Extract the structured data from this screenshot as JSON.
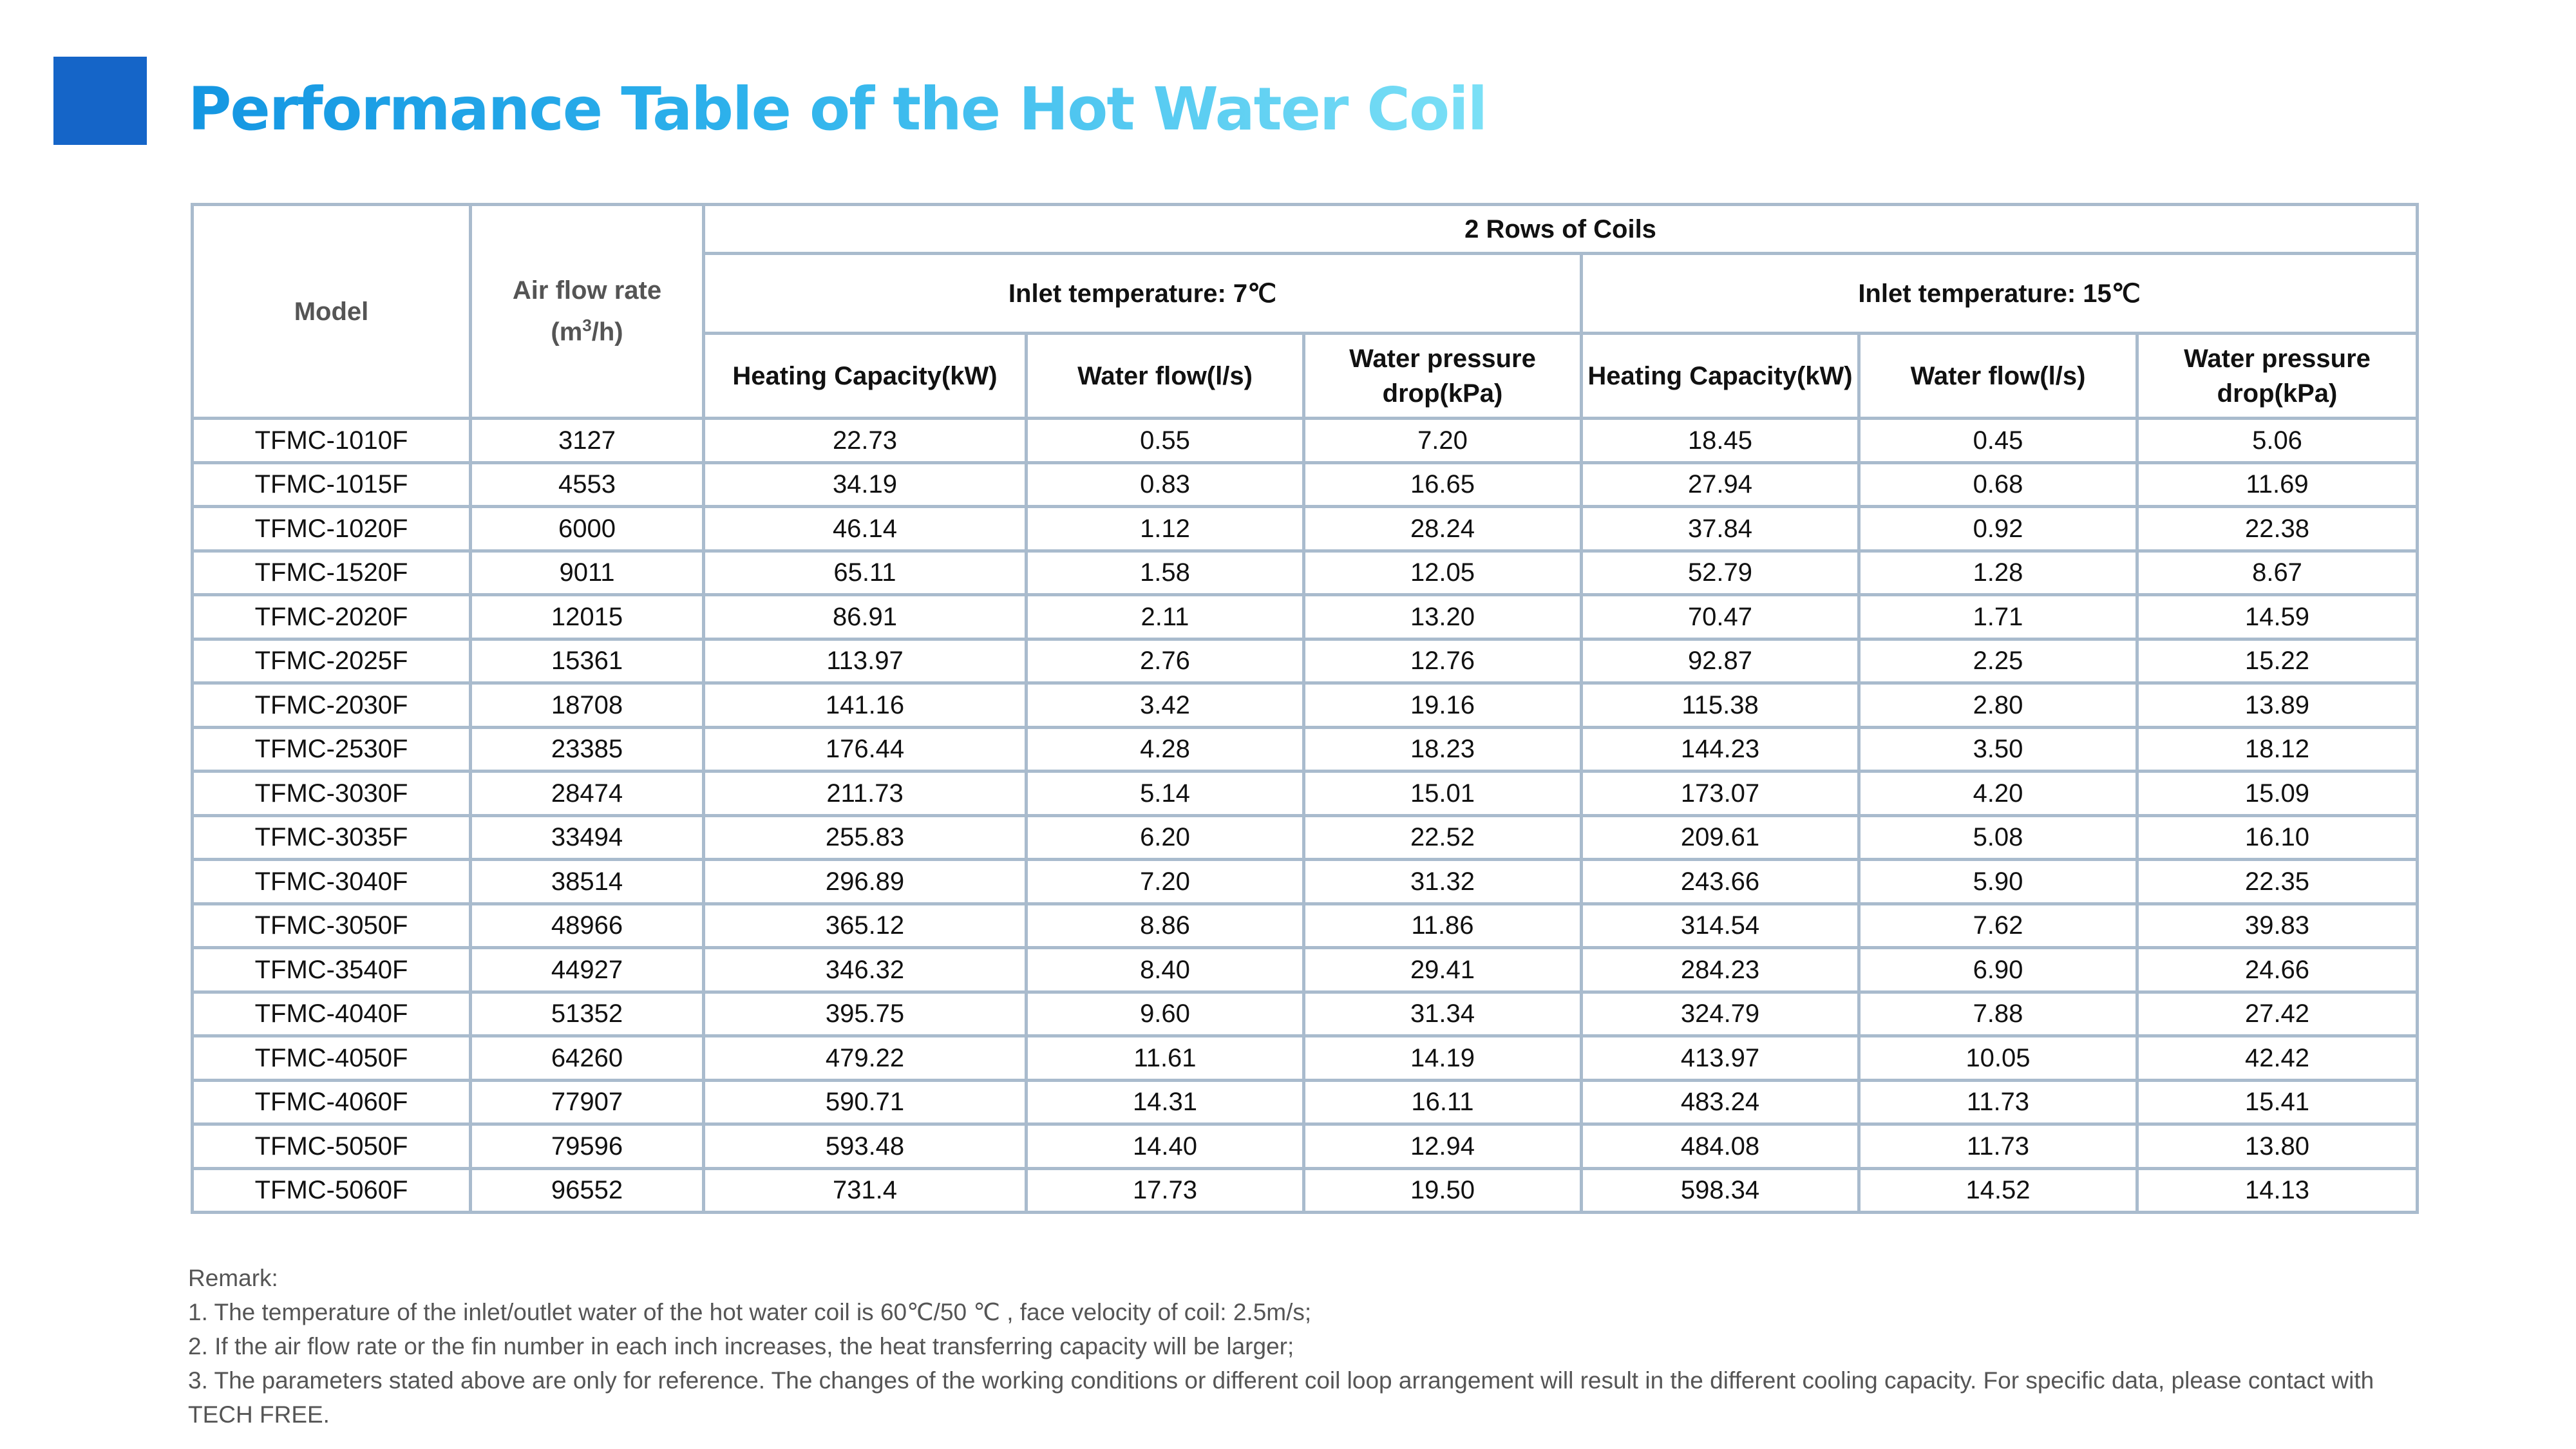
{
  "title": "Performance Table of the Hot Water Coil",
  "colors": {
    "accent_square": "#1565c8",
    "title_gradient_start": "#1496e2",
    "title_gradient_end": "#7be0f6",
    "table_border": "#a9bbcd"
  },
  "table": {
    "group_header": "2 Rows of Coils",
    "col_model": "Model",
    "col_airflow": "Air flow rate",
    "col_airflow_unit_pre": "(m",
    "col_airflow_unit_sup": "3",
    "col_airflow_unit_post": "/h)",
    "inlet_7": "Inlet temperature: 7℃",
    "inlet_15": "Inlet temperature: 15℃",
    "sub_headers": [
      "Heating Capacity(kW)",
      "Water flow(l/s)",
      "Water pressure drop(kPa)",
      "Heating Capacity(kW)",
      "Water flow(l/s)",
      "Water pressure drop(kPa)"
    ],
    "rows": [
      [
        "TFMC-1010F",
        "3127",
        "22.73",
        "0.55",
        "7.20",
        "18.45",
        "0.45",
        "5.06"
      ],
      [
        "TFMC-1015F",
        "4553",
        "34.19",
        "0.83",
        "16.65",
        "27.94",
        "0.68",
        "11.69"
      ],
      [
        "TFMC-1020F",
        "6000",
        "46.14",
        "1.12",
        "28.24",
        "37.84",
        "0.92",
        "22.38"
      ],
      [
        "TFMC-1520F",
        "9011",
        "65.11",
        "1.58",
        "12.05",
        "52.79",
        "1.28",
        "8.67"
      ],
      [
        "TFMC-2020F",
        "12015",
        "86.91",
        "2.11",
        "13.20",
        "70.47",
        "1.71",
        "14.59"
      ],
      [
        "TFMC-2025F",
        "15361",
        "113.97",
        "2.76",
        "12.76",
        "92.87",
        "2.25",
        "15.22"
      ],
      [
        "TFMC-2030F",
        "18708",
        "141.16",
        "3.42",
        "19.16",
        "115.38",
        "2.80",
        "13.89"
      ],
      [
        "TFMC-2530F",
        "23385",
        "176.44",
        "4.28",
        "18.23",
        "144.23",
        "3.50",
        "18.12"
      ],
      [
        "TFMC-3030F",
        "28474",
        "211.73",
        "5.14",
        "15.01",
        "173.07",
        "4.20",
        "15.09"
      ],
      [
        "TFMC-3035F",
        "33494",
        "255.83",
        "6.20",
        "22.52",
        "209.61",
        "5.08",
        "16.10"
      ],
      [
        "TFMC-3040F",
        "38514",
        "296.89",
        "7.20",
        "31.32",
        "243.66",
        "5.90",
        "22.35"
      ],
      [
        "TFMC-3050F",
        "48966",
        "365.12",
        "8.86",
        "11.86",
        "314.54",
        "7.62",
        "39.83"
      ],
      [
        "TFMC-3540F",
        "44927",
        "346.32",
        "8.40",
        "29.41",
        "284.23",
        "6.90",
        "24.66"
      ],
      [
        "TFMC-4040F",
        "51352",
        "395.75",
        "9.60",
        "31.34",
        "324.79",
        "7.88",
        "27.42"
      ],
      [
        "TFMC-4050F",
        "64260",
        "479.22",
        "11.61",
        "14.19",
        "413.97",
        "10.05",
        "42.42"
      ],
      [
        "TFMC-4060F",
        "77907",
        "590.71",
        "14.31",
        "16.11",
        "483.24",
        "11.73",
        "15.41"
      ],
      [
        "TFMC-5050F",
        "79596",
        "593.48",
        "14.40",
        "12.94",
        "484.08",
        "11.73",
        "13.80"
      ],
      [
        "TFMC-5060F",
        "96552",
        "731.4",
        "17.73",
        "19.50",
        "598.34",
        "14.52",
        "14.13"
      ]
    ]
  },
  "remarks": {
    "heading": "Remark:",
    "lines": [
      "1. The temperature of the inlet/outlet water of the hot water coil is 60℃/50 ℃ , face velocity of coil: 2.5m/s;",
      "2. If the air flow rate or the fin number in each inch increases, the heat transferring capacity will be larger;",
      "3. The parameters stated above are only for reference. The changes of the working conditions or different coil loop arrangement will result in the different cooling capacity. For specific data, please contact with TECH FREE."
    ]
  }
}
